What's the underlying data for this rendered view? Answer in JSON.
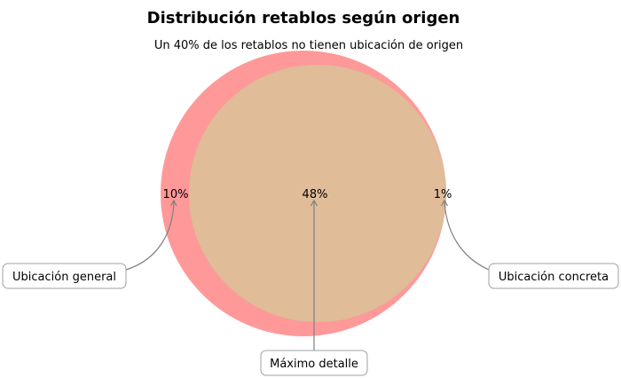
{
  "chart_data": {
    "type": "venn",
    "title": "Distribución retablos según origen",
    "subtitle": "Un 40% de los retablos no tienen ubicación de origen",
    "sets": [
      {
        "label": "Ubicación general",
        "color": "#ff9999"
      },
      {
        "label": "Ubicación concreta",
        "color": "#99cc99"
      }
    ],
    "regions": [
      {
        "id": "general_only",
        "value": "10%",
        "annotation": "Ubicación general"
      },
      {
        "id": "intersection",
        "value": "48%",
        "annotation": "Máximo detalle",
        "color": "#e0bc99"
      },
      {
        "id": "concreta_only",
        "value": "1%",
        "annotation": "Ubicación concreta"
      }
    ]
  }
}
